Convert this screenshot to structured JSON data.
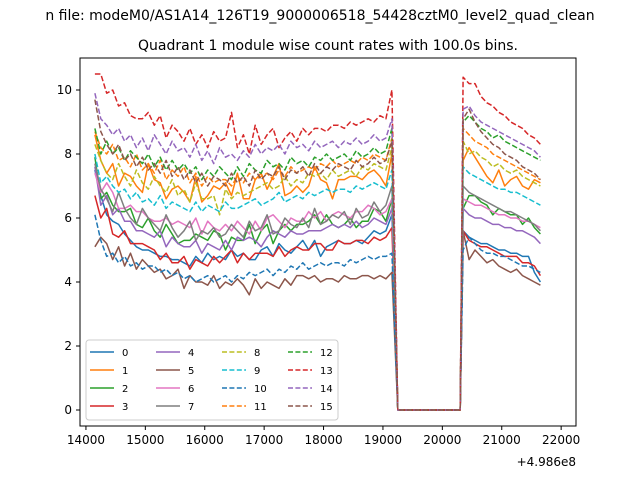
{
  "chart_data": {
    "type": "line",
    "suptitle": "n file: modeM0/AS1A14_126T19_9000006518_54428cztM0_level2_quad_clean",
    "title": "Quadrant 1 module wise count rates with 100.0s bins.",
    "xlabel": "",
    "ylabel": "",
    "xlim": [
      13900,
      22250
    ],
    "ylim": [
      -0.5,
      11.0
    ],
    "xticks": [
      14000,
      15000,
      16000,
      17000,
      18000,
      19000,
      20000,
      21000,
      22000
    ],
    "yticks": [
      0,
      2,
      4,
      6,
      8,
      10
    ],
    "offset_text": "+4.986e8",
    "grid": false,
    "legend_position": "lower-left",
    "seg1": [
      14150,
      19150
    ],
    "seg2": [
      20350,
      21650
    ],
    "gap_x": [
      19250,
      19300,
      19400,
      20200,
      20300
    ],
    "step": 100,
    "series": [
      {
        "name": "0",
        "color": "#1f77b4",
        "dash": "solid",
        "v1": [
          7.5,
          6.7,
          6.1,
          5.9,
          5.8,
          5.5,
          5.3,
          5.1,
          5.0,
          5.0,
          4.9,
          4.8,
          4.8,
          4.7,
          4.7,
          4.6,
          4.5,
          4.8,
          4.6,
          4.9,
          4.7,
          4.8,
          4.7,
          5.0,
          4.8,
          4.9,
          4.7,
          4.7,
          5.0,
          5.1,
          4.8,
          5.2,
          5.0,
          4.9,
          5.1,
          5.3,
          5.0,
          5.3,
          4.8,
          5.1,
          5.2,
          5.3,
          5.2,
          5.2,
          5.3,
          5.2,
          5.4,
          5.6,
          5.5,
          5.6,
          6.1
        ],
        "v2": [
          5.6,
          5.4,
          5.3,
          5.2,
          5.2,
          5.1,
          5.0,
          5.0,
          4.9,
          4.9,
          4.8,
          4.8,
          4.3,
          4.0
        ]
      },
      {
        "name": "1",
        "color": "#ff7f0e",
        "dash": "solid",
        "v1": [
          8.6,
          7.8,
          7.4,
          7.7,
          7.0,
          7.4,
          7.3,
          7.0,
          6.8,
          7.7,
          7.2,
          7.1,
          6.6,
          6.9,
          7.0,
          6.8,
          6.5,
          7.3,
          6.5,
          6.7,
          7.0,
          6.9,
          7.1,
          6.7,
          7.4,
          6.6,
          6.6,
          7.2,
          7.4,
          6.9,
          7.3,
          7.7,
          6.7,
          6.8,
          7.0,
          6.8,
          7.0,
          7.6,
          7.2,
          7.1,
          6.6,
          7.2,
          7.2,
          7.3,
          7.3,
          7.2,
          7.4,
          7.5,
          7.3,
          7.0,
          8.0
        ],
        "v2": [
          7.8,
          8.2,
          7.9,
          7.6,
          7.3,
          7.1,
          7.5,
          7.0,
          7.2,
          7.3,
          7.0,
          6.9,
          7.2,
          7.1
        ]
      },
      {
        "name": "2",
        "color": "#2ca02c",
        "dash": "solid",
        "v1": [
          7.9,
          6.6,
          6.8,
          6.4,
          6.2,
          6.2,
          6.3,
          5.8,
          5.7,
          6.0,
          5.6,
          5.4,
          5.8,
          5.5,
          5.2,
          5.3,
          5.3,
          5.5,
          5.4,
          5.3,
          5.6,
          5.5,
          5.0,
          5.4,
          5.3,
          5.3,
          5.8,
          5.2,
          5.6,
          5.8,
          5.2,
          5.6,
          5.8,
          5.6,
          5.8,
          5.8,
          5.9,
          6.1,
          5.8,
          6.1,
          5.8,
          5.7,
          5.8,
          6.0,
          5.7,
          5.9,
          5.9,
          6.3,
          6.2,
          5.9,
          6.6
        ],
        "v2": [
          6.3,
          6.7,
          6.7,
          6.5,
          6.4,
          6.1,
          6.3,
          6.2,
          6.1,
          6.1,
          5.8,
          6.0,
          5.7,
          5.5
        ]
      },
      {
        "name": "3",
        "color": "#d62728",
        "dash": "solid",
        "v1": [
          6.7,
          6.0,
          6.3,
          5.5,
          5.4,
          5.6,
          5.2,
          5.2,
          5.2,
          5.1,
          5.0,
          4.7,
          4.9,
          4.6,
          4.6,
          4.8,
          4.4,
          4.7,
          4.6,
          4.5,
          4.8,
          4.6,
          4.8,
          5.0,
          4.6,
          4.9,
          4.7,
          4.9,
          4.9,
          4.9,
          4.8,
          5.1,
          4.8,
          5.0,
          5.1,
          5.0,
          5.0,
          5.2,
          5.2,
          5.0,
          5.0,
          5.3,
          5.2,
          5.2,
          5.3,
          5.3,
          5.2,
          5.4,
          5.3,
          5.4,
          5.7
        ],
        "v2": [
          5.6,
          5.3,
          5.2,
          5.1,
          5.1,
          5.0,
          4.9,
          4.8,
          4.8,
          4.8,
          4.6,
          4.6,
          4.5,
          4.2
        ]
      },
      {
        "name": "4",
        "color": "#9467bd",
        "dash": "solid",
        "v1": [
          7.6,
          6.4,
          6.7,
          6.1,
          6.3,
          5.9,
          5.9,
          5.6,
          5.6,
          5.5,
          5.4,
          5.6,
          5.1,
          5.4,
          5.2,
          5.1,
          5.1,
          5.3,
          4.9,
          5.2,
          5.1,
          5.0,
          5.3,
          5.0,
          5.4,
          5.3,
          5.4,
          5.3,
          5.1,
          5.4,
          5.6,
          5.5,
          5.4,
          5.6,
          5.5,
          5.5,
          5.6,
          5.6,
          5.6,
          5.7,
          5.8,
          5.7,
          5.8,
          5.7,
          5.9,
          5.7,
          5.8,
          6.0,
          5.9,
          5.8,
          6.3
        ],
        "v2": [
          6.3,
          6.1,
          6.0,
          6.0,
          5.9,
          5.8,
          5.8,
          5.7,
          5.7,
          5.6,
          5.6,
          5.5,
          5.4,
          5.2
        ]
      },
      {
        "name": "5",
        "color": "#8c564b",
        "dash": "solid",
        "v1": [
          5.1,
          5.4,
          5.2,
          4.7,
          5.1,
          4.5,
          4.9,
          4.4,
          4.7,
          4.5,
          4.3,
          4.4,
          4.1,
          4.2,
          4.4,
          3.8,
          4.2,
          4.0,
          4.0,
          3.9,
          4.2,
          3.8,
          4.0,
          3.9,
          4.1,
          3.9,
          3.6,
          4.1,
          3.8,
          4.0,
          3.9,
          3.8,
          4.1,
          3.9,
          4.2,
          4.2,
          4.1,
          4.2,
          4.0,
          4.1,
          4.1,
          4.0,
          4.2,
          4.1,
          4.1,
          4.2,
          4.2,
          4.1,
          4.2,
          4.1,
          4.3
        ],
        "v2": [
          5.6,
          4.7,
          5.0,
          4.8,
          4.6,
          4.7,
          4.5,
          4.4,
          4.3,
          4.4,
          4.2,
          4.1,
          4.0,
          3.9
        ]
      },
      {
        "name": "6",
        "color": "#e377c2",
        "dash": "solid",
        "v1": [
          7.4,
          6.8,
          7.1,
          6.8,
          6.3,
          6.3,
          6.4,
          6.2,
          6.2,
          6.0,
          5.9,
          5.9,
          6.0,
          5.8,
          5.9,
          5.8,
          5.7,
          6.0,
          5.5,
          5.9,
          5.7,
          5.6,
          5.8,
          5.6,
          5.9,
          5.7,
          5.5,
          5.9,
          5.6,
          6.0,
          6.1,
          5.9,
          5.7,
          6.0,
          5.9,
          5.9,
          6.2,
          6.0,
          6.2,
          5.9,
          6.1,
          6.2,
          6.1,
          6.0,
          6.2,
          6.2,
          6.4,
          6.3,
          6.1,
          6.2,
          6.6
        ],
        "v2": [
          6.6,
          6.5,
          6.4,
          6.4,
          6.3,
          6.2,
          6.1,
          6.1,
          6.0,
          6.0,
          5.9,
          5.9,
          5.8,
          5.7
        ]
      },
      {
        "name": "7",
        "color": "#7f7f7f",
        "dash": "solid",
        "v1": [
          7.7,
          6.9,
          6.6,
          6.2,
          6.8,
          6.3,
          6.0,
          5.8,
          6.3,
          6.0,
          5.8,
          5.6,
          6.1,
          5.7,
          5.4,
          5.6,
          5.9,
          5.3,
          5.6,
          5.5,
          5.7,
          5.4,
          5.5,
          5.8,
          5.6,
          5.4,
          5.9,
          5.6,
          5.7,
          6.1,
          5.5,
          5.6,
          6.0,
          5.8,
          5.7,
          6.0,
          5.7,
          6.3,
          5.8,
          5.9,
          6.1,
          6.0,
          6.2,
          5.8,
          6.3,
          6.0,
          6.1,
          6.5,
          6.2,
          6.4,
          7.0
        ],
        "v2": [
          7.0,
          6.8,
          6.7,
          6.6,
          6.5,
          6.4,
          6.3,
          6.2,
          6.2,
          6.1,
          6.0,
          5.9,
          5.8,
          5.6
        ]
      },
      {
        "name": "8",
        "color": "#bcbd22",
        "dash": "dashed",
        "v1": [
          8.3,
          7.8,
          7.4,
          7.2,
          7.7,
          7.3,
          7.0,
          7.5,
          7.1,
          6.9,
          7.3,
          7.0,
          6.8,
          7.2,
          6.7,
          6.9,
          6.5,
          7.1,
          6.6,
          6.6,
          6.7,
          6.1,
          6.9,
          6.6,
          6.8,
          6.7,
          6.8,
          6.9,
          7.0,
          7.1,
          6.9,
          7.0,
          7.3,
          7.0,
          7.2,
          7.1,
          7.4,
          7.3,
          7.4,
          7.2,
          7.5,
          7.3,
          7.4,
          7.5,
          7.3,
          7.6,
          7.5,
          7.7,
          7.6,
          7.5,
          8.2
        ],
        "v2": [
          8.4,
          8.0,
          8.1,
          7.9,
          7.8,
          7.6,
          7.7,
          7.5,
          7.4,
          7.5,
          7.3,
          7.2,
          7.1,
          7.0
        ]
      },
      {
        "name": "9",
        "color": "#17becf",
        "dash": "dashed",
        "v1": [
          8.0,
          7.1,
          7.3,
          7.0,
          6.8,
          6.9,
          6.6,
          6.8,
          6.5,
          6.6,
          6.4,
          6.7,
          6.3,
          6.5,
          6.4,
          6.3,
          6.2,
          6.5,
          6.2,
          6.4,
          6.3,
          6.2,
          6.5,
          6.3,
          6.3,
          6.4,
          6.5,
          6.6,
          6.4,
          6.5,
          6.6,
          6.8,
          6.5,
          6.6,
          6.7,
          6.6,
          6.8,
          6.7,
          6.8,
          6.9,
          6.8,
          6.9,
          6.9,
          6.8,
          7.0,
          6.9,
          7.0,
          7.1,
          7.0,
          6.9,
          7.5
        ],
        "v2": [
          7.6,
          7.4,
          7.3,
          7.2,
          7.1,
          7.0,
          6.9,
          6.9,
          6.8,
          6.8,
          6.7,
          6.6,
          6.5,
          6.4
        ]
      },
      {
        "name": "10",
        "color": "#1f77b4",
        "dash": "dashed",
        "v1": [
          6.1,
          5.3,
          4.8,
          4.9,
          4.6,
          4.8,
          4.5,
          4.6,
          4.4,
          4.5,
          4.5,
          4.3,
          4.4,
          4.2,
          4.3,
          4.1,
          4.2,
          4.0,
          4.1,
          4.2,
          4.0,
          4.1,
          4.2,
          4.0,
          4.2,
          4.1,
          4.3,
          4.2,
          4.3,
          4.4,
          4.2,
          4.4,
          4.3,
          4.5,
          4.4,
          4.6,
          4.4,
          4.5,
          4.6,
          4.5,
          4.6,
          4.6,
          4.5,
          4.7,
          4.6,
          4.7,
          4.8,
          4.7,
          4.8,
          4.8,
          4.9
        ],
        "v2": [
          5.0,
          5.4,
          5.2,
          5.0,
          4.9,
          4.9,
          4.8,
          4.8,
          4.7,
          4.6,
          4.5,
          4.5,
          4.4,
          4.3
        ]
      },
      {
        "name": "11",
        "color": "#ff7f0e",
        "dash": "dashed",
        "v1": [
          8.7,
          8.2,
          8.0,
          8.3,
          7.8,
          7.9,
          7.6,
          8.0,
          7.5,
          7.7,
          7.4,
          7.8,
          7.2,
          7.5,
          7.3,
          7.6,
          7.1,
          7.4,
          7.0,
          7.3,
          7.1,
          7.2,
          7.2,
          7.0,
          7.3,
          7.1,
          7.4,
          7.2,
          7.3,
          7.4,
          7.2,
          7.5,
          7.3,
          7.6,
          7.4,
          7.5,
          7.6,
          7.5,
          7.7,
          7.6,
          7.8,
          7.6,
          7.7,
          7.8,
          7.7,
          7.9,
          7.8,
          8.0,
          7.9,
          7.8,
          8.5
        ],
        "v2": [
          8.8,
          8.6,
          8.4,
          8.3,
          8.2,
          8.0,
          7.9,
          7.8,
          7.7,
          7.6,
          7.5,
          7.4,
          7.3,
          7.2
        ]
      },
      {
        "name": "12",
        "color": "#2ca02c",
        "dash": "dashed",
        "v1": [
          8.8,
          8.0,
          8.4,
          8.0,
          8.2,
          7.8,
          8.1,
          7.9,
          7.7,
          8.0,
          7.6,
          7.9,
          7.5,
          7.8,
          7.5,
          7.7,
          7.4,
          7.6,
          7.2,
          7.5,
          7.3,
          7.6,
          7.4,
          7.2,
          7.6,
          7.3,
          7.7,
          7.5,
          7.4,
          7.8,
          7.6,
          7.7,
          7.5,
          7.9,
          7.7,
          7.8,
          7.6,
          7.9,
          7.8,
          8.0,
          7.8,
          7.9,
          8.0,
          7.8,
          8.1,
          7.9,
          8.0,
          8.2,
          8.0,
          8.1,
          8.8
        ],
        "v2": [
          9.0,
          9.2,
          9.0,
          8.8,
          8.7,
          8.5,
          8.6,
          8.4,
          8.3,
          8.2,
          8.1,
          8.0,
          7.9,
          7.8
        ]
      },
      {
        "name": "13",
        "color": "#d62728",
        "dash": "dashed",
        "v1": [
          10.5,
          10.5,
          9.9,
          10.0,
          9.5,
          9.6,
          9.2,
          9.1,
          9.1,
          9.3,
          8.9,
          9.2,
          8.5,
          8.9,
          8.7,
          8.4,
          8.8,
          8.3,
          8.6,
          8.2,
          8.7,
          8.4,
          8.5,
          9.3,
          8.2,
          8.6,
          8.0,
          8.9,
          8.3,
          8.6,
          8.8,
          8.2,
          8.5,
          8.7,
          8.4,
          8.8,
          8.6,
          8.8,
          8.8,
          8.7,
          8.9,
          8.9,
          8.8,
          9.0,
          8.9,
          9.0,
          9.1,
          9.0,
          9.2,
          9.1,
          10.0
        ],
        "v2": [
          10.4,
          10.2,
          10.2,
          9.8,
          9.6,
          9.5,
          9.3,
          9.2,
          9.0,
          8.9,
          8.8,
          8.6,
          8.5,
          8.3
        ]
      },
      {
        "name": "14",
        "color": "#9467bd",
        "dash": "dashed",
        "v1": [
          9.9,
          9.1,
          8.9,
          8.6,
          8.8,
          8.4,
          8.6,
          8.2,
          8.5,
          8.1,
          8.6,
          8.3,
          8.0,
          8.4,
          8.1,
          8.2,
          7.9,
          8.3,
          7.8,
          8.1,
          7.7,
          8.2,
          7.9,
          8.0,
          7.8,
          8.1,
          7.9,
          8.3,
          8.0,
          8.2,
          8.1,
          8.3,
          8.0,
          8.4,
          8.2,
          8.3,
          8.1,
          8.4,
          8.2,
          8.3,
          8.4,
          8.2,
          8.4,
          8.3,
          8.5,
          8.3,
          8.4,
          8.6,
          8.4,
          8.5,
          9.1
        ],
        "v2": [
          9.4,
          9.5,
          9.2,
          9.0,
          8.9,
          8.8,
          8.7,
          8.6,
          8.5,
          8.4,
          8.3,
          8.2,
          8.1,
          7.9
        ]
      },
      {
        "name": "15",
        "color": "#8c564b",
        "dash": "dashed",
        "v1": [
          9.7,
          8.7,
          8.3,
          8.0,
          8.3,
          7.8,
          8.0,
          7.6,
          7.9,
          7.5,
          7.7,
          7.4,
          7.8,
          7.3,
          7.6,
          7.2,
          7.5,
          7.1,
          7.4,
          7.0,
          7.3,
          7.2,
          7.0,
          7.4,
          7.1,
          7.3,
          7.0,
          7.5,
          7.2,
          7.4,
          7.3,
          7.6,
          7.2,
          7.5,
          7.4,
          7.6,
          7.3,
          7.7,
          7.4,
          7.6,
          7.5,
          7.7,
          7.6,
          7.5,
          7.8,
          7.6,
          7.7,
          7.9,
          7.7,
          7.8,
          8.4
        ],
        "v2": [
          9.1,
          9.4,
          9.0,
          8.7,
          8.5,
          8.3,
          8.2,
          8.0,
          7.9,
          7.8,
          7.6,
          7.5,
          7.4,
          7.2
        ]
      }
    ]
  }
}
